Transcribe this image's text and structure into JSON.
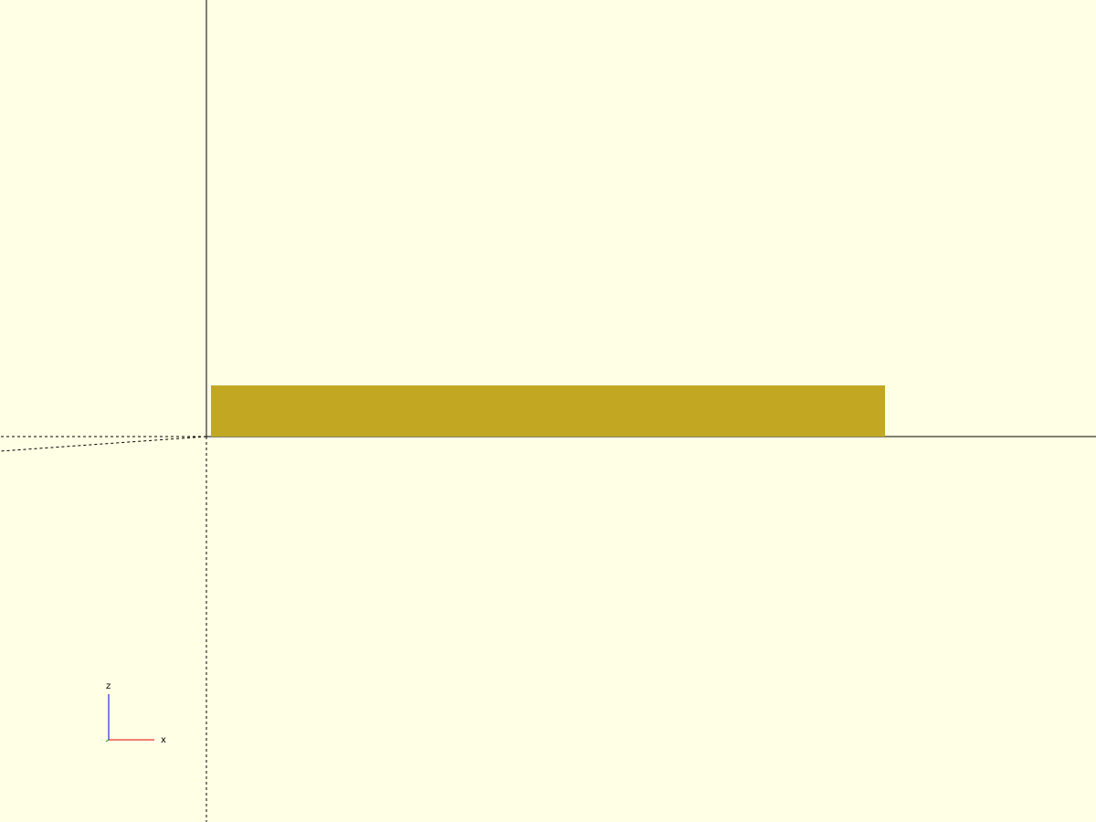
{
  "viewport": {
    "background_color": "#ffffe5",
    "axis_color": "#000000",
    "object_color": "#c2a822",
    "object_name": "cube-model"
  },
  "axis_gizmo": {
    "x_label": "x",
    "z_label": "z",
    "x_color": "#e00000",
    "z_color": "#0000e0",
    "y_color": "#00a000"
  }
}
